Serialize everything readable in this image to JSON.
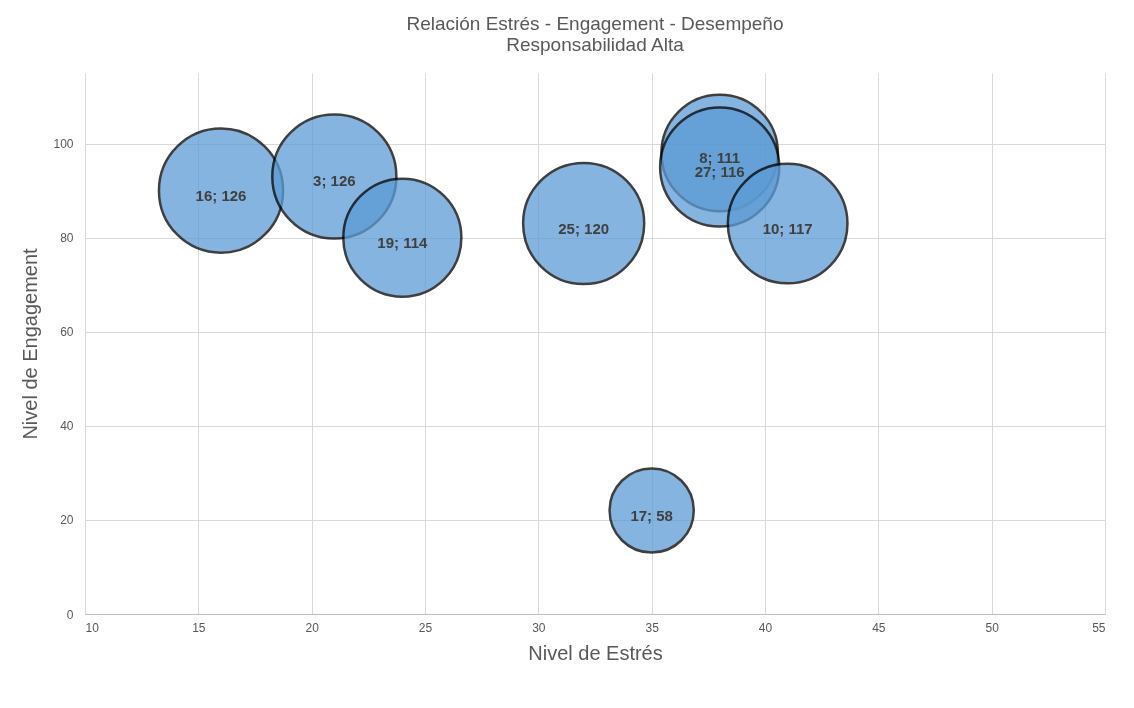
{
  "chart_data": {
    "type": "bubble",
    "title": "Relación Estrés - Engagement - Desempeño",
    "subtitle": "Responsabilidad Alta",
    "xlabel": "Nivel de Estrés",
    "ylabel": "Nivel de Engagement",
    "x": [
      16,
      21,
      24,
      32,
      38,
      38,
      41,
      35
    ],
    "values": [
      90,
      93,
      80,
      83,
      98,
      95,
      83,
      22
    ],
    "sizes": [
      1,
      1,
      0.905,
      0.952,
      0.881,
      0.921,
      0.929,
      0.46
    ],
    "value_labels": [
      "16; 126",
      "3; 126",
      "19; 114",
      "25; 120",
      "8; 111",
      "27; 116",
      "10; 117",
      "17; 58"
    ],
    "color": "#5b9bd5",
    "xlim": [
      10,
      55
    ],
    "xticks": [
      10,
      15,
      20,
      25,
      30,
      35,
      40,
      45,
      50,
      55
    ],
    "ylim": [
      0,
      115
    ],
    "yticks": [
      0,
      20,
      40,
      60,
      80,
      100
    ],
    "grid": true
  }
}
